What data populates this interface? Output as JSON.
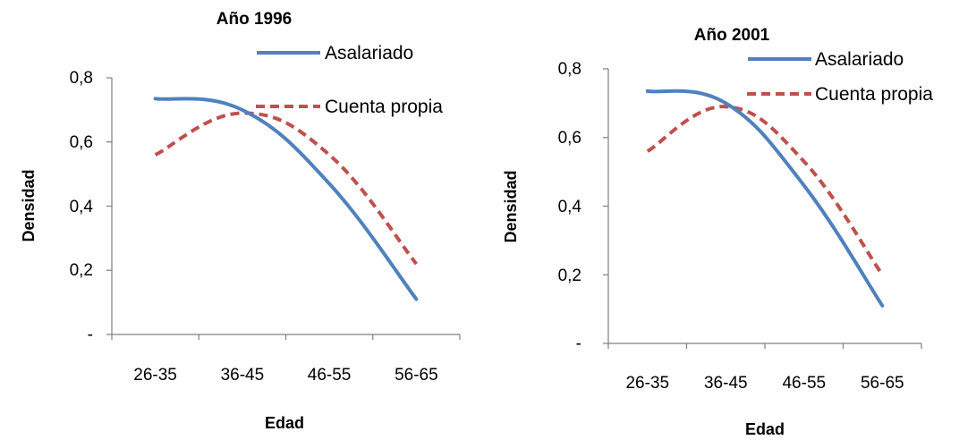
{
  "chart_data": [
    {
      "type": "line",
      "title": "Año 1996",
      "xlabel": "Edad",
      "ylabel": "Densidad",
      "categories": [
        "26-35",
        "36-45",
        "46-55",
        "56-65"
      ],
      "ylim": [
        0,
        0.8
      ],
      "ytick_values": [
        0,
        0.2,
        0.4,
        0.6,
        0.8
      ],
      "ytick_labels": [
        "-",
        "0,2",
        "0,4",
        "0,6",
        "0,8"
      ],
      "grid": false,
      "legend_position": "top-right",
      "series": [
        {
          "name": "Asalariado",
          "values": [
            0.735,
            0.7,
            0.47,
            0.11
          ],
          "color": "#4F81BD",
          "style": "solid"
        },
        {
          "name": "Cuenta propia",
          "values": [
            0.56,
            0.69,
            0.56,
            0.22
          ],
          "color": "#C0504D",
          "style": "dashed"
        }
      ]
    },
    {
      "type": "line",
      "title": "Año 2001",
      "xlabel": "Edad",
      "ylabel": "Densidad",
      "categories": [
        "26-35",
        "36-45",
        "46-55",
        "56-65"
      ],
      "ylim": [
        0,
        0.8
      ],
      "ytick_values": [
        0,
        0.2,
        0.4,
        0.6,
        0.8
      ],
      "ytick_labels": [
        "-",
        "0,2",
        "0,4",
        "0,6",
        "0,8"
      ],
      "grid": false,
      "legend_position": "top-right",
      "series": [
        {
          "name": "Asalariado",
          "values": [
            0.735,
            0.7,
            0.46,
            0.11
          ],
          "color": "#4F81BD",
          "style": "solid"
        },
        {
          "name": "Cuenta propia",
          "values": [
            0.56,
            0.69,
            0.53,
            0.2
          ],
          "color": "#C0504D",
          "style": "dashed"
        }
      ]
    }
  ]
}
